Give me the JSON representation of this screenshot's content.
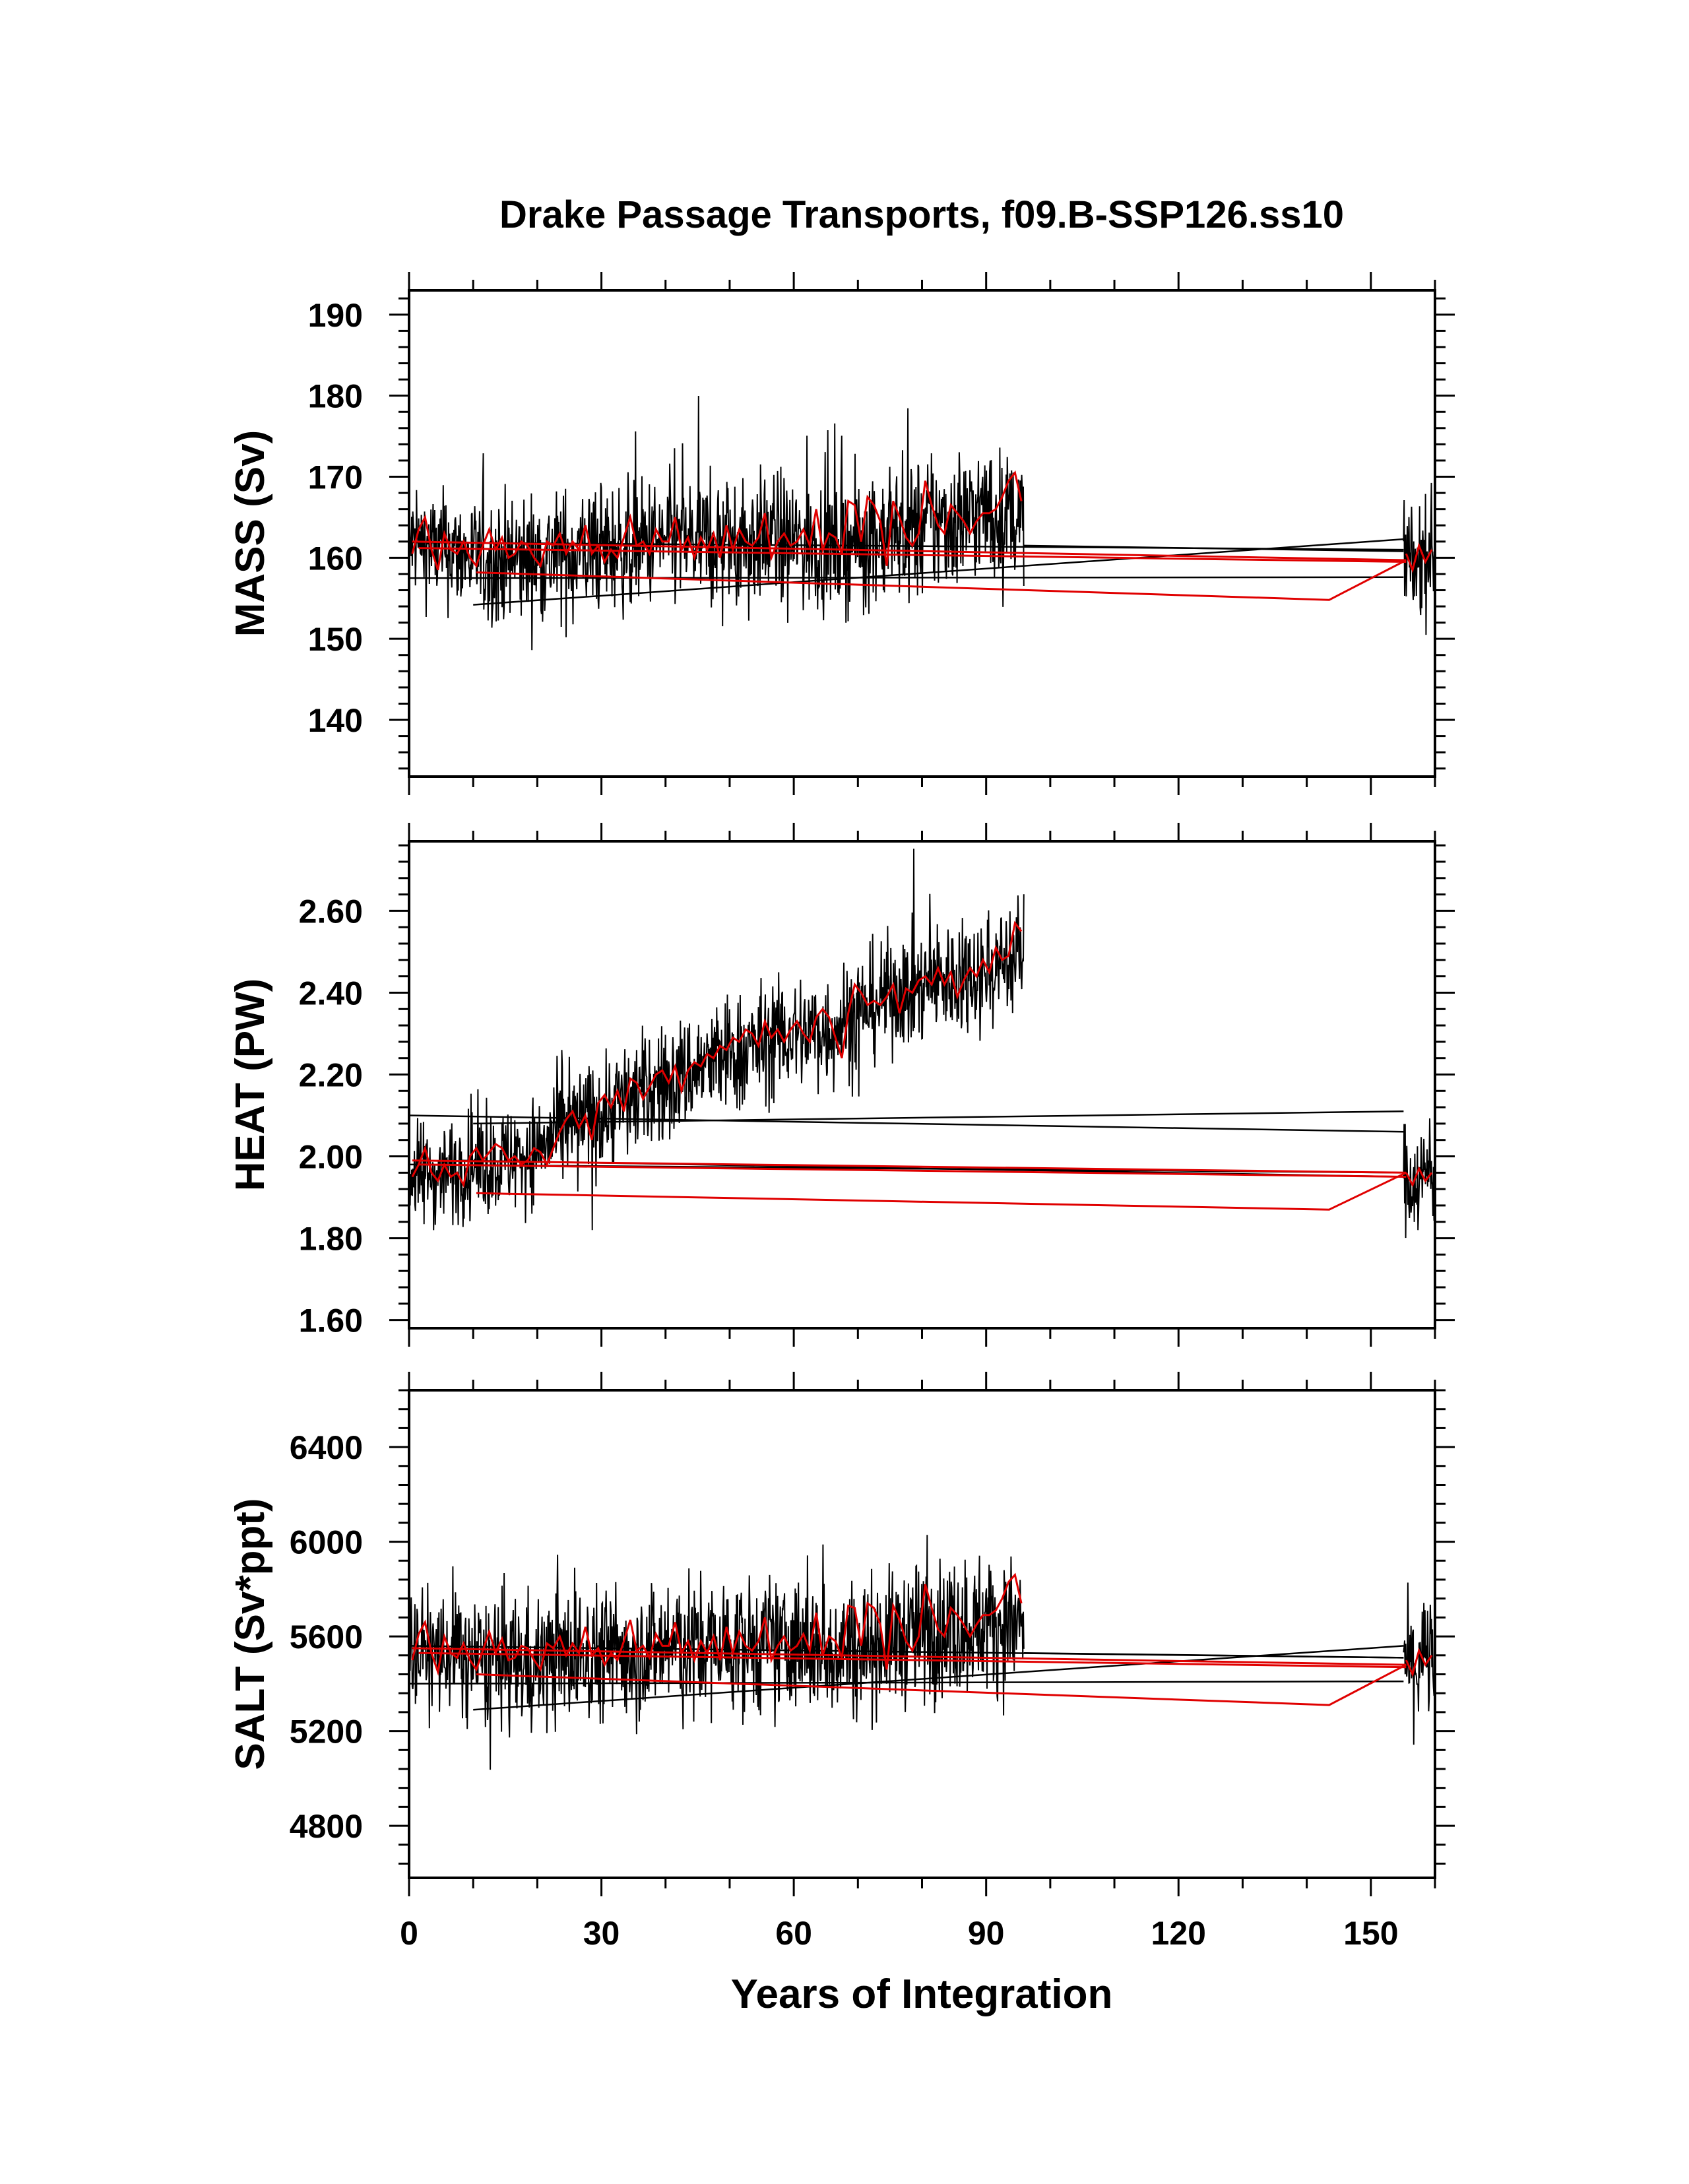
{
  "chart_data": {
    "type": "line",
    "title": "Drake Passage Transports, f09.B-SSP126.ss10",
    "xlabel": "Years of Integration",
    "xlim": [
      0,
      160
    ],
    "xticks": [
      0,
      30,
      60,
      90,
      120,
      150
    ],
    "xtick_labels": [
      "0",
      "30",
      "60",
      "90",
      "120",
      "150"
    ],
    "colors": {
      "monthly": "#000000",
      "annual": "#e00000"
    },
    "panels": [
      {
        "id": "mass",
        "ylabel": "MASS (Sv)",
        "ylim": [
          133,
          193
        ],
        "yticks": [
          140,
          150,
          160,
          170,
          180,
          190
        ],
        "ytick_labels": [
          "140",
          "150",
          "160",
          "170",
          "180",
          "190"
        ],
        "monthly_segments": [
          {
            "start": 0,
            "end": 95.9,
            "step": 0.0833,
            "base": [
              162,
              161,
              160,
              159.5,
              160,
              160.5,
              161,
              161.5,
              162,
              162,
              162,
              162.5,
              162,
              161.5,
              162,
              163,
              164,
              165,
              165.5,
              165
            ],
            "amp": [
              8,
              9,
              9,
              10,
              10,
              10,
              10,
              10,
              10,
              10,
              10,
              10,
              10,
              10,
              10,
              10,
              11,
              11,
              10,
              9
            ]
          },
          {
            "start": 155.1,
            "end": 159.9,
            "step": 0.0833,
            "base": [
              160,
              159,
              160,
              161
            ],
            "amp": [
              9,
              9,
              9,
              9
            ]
          }
        ],
        "monthly_jumps": [
          {
            "x": [
              95.9,
              155.1
            ],
            "y": [
              161.5,
              160.8
            ]
          },
          {
            "x": [
              0,
              155.1
            ],
            "y": [
              161.9,
              161.0
            ]
          },
          {
            "x": [
              10,
              155.1
            ],
            "y": [
              154.2,
              162.3
            ]
          },
          {
            "x": [
              0,
              155.1
            ],
            "y": [
              157.5,
              157.6
            ]
          }
        ],
        "annual": {
          "x0": 0.5,
          "x1": 95.5,
          "values": [
            160.5,
            163.5,
            165.0,
            161.0,
            158.5,
            163.0,
            161.0,
            160.5,
            162.0,
            160.0,
            159.0,
            161.5,
            163.5,
            161.0,
            162.5,
            160.0,
            160.5,
            162.0,
            161.5,
            160.0,
            159.0,
            162.0,
            161.5,
            163.0,
            160.5,
            162.0,
            161.0,
            164.0,
            160.5,
            161.5,
            159.5,
            161.0,
            160.0,
            162.5,
            165.0,
            161.5,
            162.0,
            160.5,
            163.5,
            162.0,
            162.0,
            165.0,
            161.0,
            162.5,
            160.0,
            162.5,
            161.0,
            163.0,
            160.0,
            164.0,
            161.0,
            163.5,
            162.0,
            161.5,
            162.5,
            165.5,
            160.0,
            162.0,
            163.0,
            161.5,
            162.0,
            163.5,
            161.5,
            166.0,
            161.0,
            163.0,
            162.5,
            160.5,
            167.0,
            166.5,
            162.0,
            167.5,
            166.5,
            164.5,
            159.0,
            167.0,
            165.0,
            162.5,
            161.5,
            163.0,
            169.5,
            166.5,
            164.0,
            163.0,
            166.5,
            165.5,
            164.5,
            163.0,
            164.5,
            165.5,
            165.5,
            166.0,
            167.5,
            169.5,
            170.5,
            167.0
          ]
        },
        "annual_jumps": [
          {
            "x": [
              0.5,
              155.5
            ],
            "y": [
              162.0,
              159.7
            ]
          },
          {
            "x": [
              1.5,
              155.5
            ],
            "y": [
              161.2,
              159.5
            ]
          },
          {
            "x": [
              10.5,
              143.5,
              155.5
            ],
            "y": [
              158.2,
              154.8,
              159.7
            ]
          }
        ],
        "annual_tail": {
          "x": [
            155.5,
            156.5,
            157.5,
            158.5,
            159.5
          ],
          "y": [
            160.5,
            158.5,
            161.5,
            159.5,
            161.0
          ]
        }
      },
      {
        "id": "heat",
        "ylabel": "HEAT (PW)",
        "ylim": [
          1.58,
          2.77
        ],
        "yticks": [
          1.6,
          1.8,
          2.0,
          2.2,
          2.4,
          2.6
        ],
        "ytick_labels": [
          "1.60",
          "1.80",
          "2.00",
          "2.20",
          "2.40",
          "2.60"
        ],
        "monthly_segments": [
          {
            "start": 0,
            "end": 95.9,
            "step": 0.0833,
            "base": [
              1.95,
              1.96,
              1.98,
              1.99,
              2.02,
              2.07,
              2.11,
              2.15,
              2.18,
              2.22,
              2.25,
              2.28,
              2.3,
              2.31,
              2.36,
              2.4,
              2.42,
              2.44,
              2.46,
              2.5
            ],
            "amp": [
              0.16,
              0.16,
              0.16,
              0.16,
              0.16,
              0.17,
              0.18,
              0.18,
              0.18,
              0.18,
              0.18,
              0.18,
              0.18,
              0.18,
              0.18,
              0.18,
              0.18,
              0.18,
              0.18,
              0.18
            ]
          },
          {
            "start": 155.1,
            "end": 159.9,
            "step": 0.0833,
            "base": [
              1.96,
              1.94,
              1.95,
              1.97
            ],
            "amp": [
              0.17,
              0.17,
              0.17,
              0.17
            ]
          }
        ],
        "monthly_jumps": [
          {
            "x": [
              0,
              155.1
            ],
            "y": [
              2.1,
              2.06
            ]
          },
          {
            "x": [
              10,
              155.1
            ],
            "y": [
              2.08,
              2.11
            ]
          },
          {
            "x": [
              8,
              155.1
            ],
            "y": [
              1.99,
              1.95
            ]
          },
          {
            "x": [
              0,
              155.1
            ],
            "y": [
              1.98,
              1.96
            ]
          }
        ],
        "annual": {
          "x0": 0.5,
          "x1": 95.5,
          "values": [
            1.95,
            1.98,
            2.02,
            1.96,
            1.94,
            1.98,
            1.95,
            1.96,
            1.93,
            2.0,
            2.02,
            1.99,
            2.01,
            2.03,
            2.02,
            1.99,
            2.0,
            1.98,
            1.99,
            2.02,
            2.01,
            1.98,
            2.02,
            2.06,
            2.09,
            2.11,
            2.07,
            2.1,
            2.04,
            2.13,
            2.15,
            2.12,
            2.16,
            2.11,
            2.19,
            2.18,
            2.14,
            2.17,
            2.2,
            2.21,
            2.18,
            2.22,
            2.16,
            2.21,
            2.23,
            2.22,
            2.25,
            2.24,
            2.27,
            2.26,
            2.29,
            2.28,
            2.31,
            2.3,
            2.27,
            2.33,
            2.29,
            2.31,
            2.28,
            2.31,
            2.33,
            2.3,
            2.28,
            2.34,
            2.36,
            2.34,
            2.29,
            2.24,
            2.35,
            2.42,
            2.4,
            2.37,
            2.38,
            2.37,
            2.39,
            2.42,
            2.35,
            2.41,
            2.4,
            2.43,
            2.44,
            2.42,
            2.46,
            2.42,
            2.45,
            2.39,
            2.43,
            2.46,
            2.44,
            2.48,
            2.45,
            2.51,
            2.48,
            2.49,
            2.57,
            2.55
          ]
        },
        "annual_jumps": [
          {
            "x": [
              0.5,
              155.5
            ],
            "y": [
              1.99,
              1.96
            ]
          },
          {
            "x": [
              1.5,
              155.5
            ],
            "y": [
              1.98,
              1.95
            ]
          },
          {
            "x": [
              10.5,
              143.5,
              155.5
            ],
            "y": [
              1.91,
              1.87,
              1.96
            ]
          }
        ],
        "annual_tail": {
          "x": [
            155.5,
            156.5,
            157.5,
            158.5,
            159.5
          ],
          "y": [
            1.96,
            1.93,
            1.97,
            1.94,
            1.96
          ]
        }
      },
      {
        "id": "salt",
        "ylabel": "SALT (Sv*ppt)",
        "ylim": [
          4580,
          6640
        ],
        "yticks": [
          4800,
          5200,
          5600,
          6000,
          6400
        ],
        "ytick_labels": [
          "4800",
          "5200",
          "5600",
          "6000",
          "6400"
        ],
        "monthly_segments": [
          {
            "start": 0,
            "end": 95.9,
            "step": 0.0833,
            "base": [
              5550,
              5530,
              5500,
              5490,
              5500,
              5510,
              5530,
              5540,
              5560,
              5560,
              5560,
              5570,
              5560,
              5550,
              5560,
              5590,
              5620,
              5650,
              5660,
              5640
            ],
            "amp": [
              300,
              330,
              340,
              360,
              360,
              360,
              360,
              360,
              360,
              360,
              360,
              360,
              360,
              360,
              360,
              360,
              380,
              380,
              360,
              320
            ]
          },
          {
            "start": 155.1,
            "end": 159.9,
            "step": 0.0833,
            "base": [
              5500,
              5470,
              5500,
              5530
            ],
            "amp": [
              320,
              320,
              320,
              320
            ]
          }
        ],
        "monthly_jumps": [
          {
            "x": [
              95.9,
              155.1
            ],
            "y": [
              5530,
              5510
            ]
          },
          {
            "x": [
              0,
              155.1
            ],
            "y": [
              5560,
              5510
            ]
          },
          {
            "x": [
              10,
              155.1
            ],
            "y": [
              5290,
              5560
            ]
          },
          {
            "x": [
              0,
              155.1
            ],
            "y": [
              5400,
              5410
            ]
          }
        ],
        "annual": {
          "x0": 0.5,
          "x1": 95.5,
          "values": [
            5500,
            5610,
            5660,
            5530,
            5450,
            5600,
            5530,
            5510,
            5570,
            5500,
            5460,
            5540,
            5620,
            5530,
            5590,
            5500,
            5510,
            5560,
            5550,
            5500,
            5460,
            5570,
            5550,
            5600,
            5520,
            5570,
            5530,
            5640,
            5520,
            5550,
            5480,
            5530,
            5500,
            5580,
            5670,
            5540,
            5560,
            5510,
            5610,
            5560,
            5560,
            5660,
            5530,
            5580,
            5500,
            5580,
            5530,
            5600,
            5500,
            5640,
            5530,
            5620,
            5560,
            5540,
            5580,
            5680,
            5500,
            5560,
            5600,
            5540,
            5560,
            5610,
            5540,
            5700,
            5520,
            5600,
            5580,
            5510,
            5730,
            5720,
            5560,
            5740,
            5720,
            5650,
            5460,
            5730,
            5670,
            5580,
            5540,
            5600,
            5820,
            5720,
            5630,
            5600,
            5720,
            5690,
            5650,
            5600,
            5650,
            5690,
            5690,
            5710,
            5760,
            5830,
            5860,
            5740
          ]
        },
        "annual_jumps": [
          {
            "x": [
              0.5,
              155.5
            ],
            "y": [
              5550,
              5480
            ]
          },
          {
            "x": [
              1.5,
              155.5
            ],
            "y": [
              5530,
              5470
            ]
          },
          {
            "x": [
              10.5,
              143.5,
              155.5
            ],
            "y": [
              5440,
              5310,
              5480
            ]
          }
        ],
        "annual_tail": {
          "x": [
            155.5,
            156.5,
            157.5,
            158.5,
            159.5
          ],
          "y": [
            5500,
            5440,
            5540,
            5480,
            5520
          ]
        }
      }
    ]
  }
}
